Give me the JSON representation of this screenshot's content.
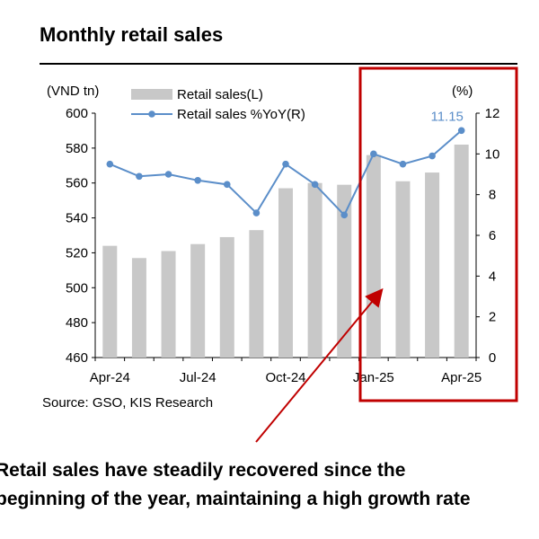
{
  "title": "Monthly retail sales",
  "source": "Source: GSO, KIS Research",
  "annotation": {
    "line1": "Retail sales have steadily recovered since the",
    "line2": "beginning of the year, maintaining a high growth rate"
  },
  "colors": {
    "bar": "#c8c8c8",
    "line": "#5b8ec9",
    "highlight": "#c00000",
    "arrow": "#c00000"
  },
  "chart_data": {
    "type": "bar+line",
    "categories": [
      "Apr-24",
      "May-24",
      "Jun-24",
      "Jul-24",
      "Aug-24",
      "Sep-24",
      "Oct-24",
      "Nov-24",
      "Dec-24",
      "Jan-25",
      "Feb-25",
      "Mar-25",
      "Apr-25"
    ],
    "x_tick_labels": [
      "Apr-24",
      "Jul-24",
      "Oct-24",
      "Jan-25",
      "Apr-25"
    ],
    "series": [
      {
        "name": "Retail sales(L)",
        "type": "bar",
        "axis": "left",
        "values": [
          524,
          517,
          521,
          525,
          529,
          533,
          557,
          560,
          559,
          576,
          561,
          566,
          582
        ]
      },
      {
        "name": "Retail sales %YoY(R)",
        "type": "line",
        "axis": "right",
        "values": [
          9.5,
          8.9,
          9.0,
          8.7,
          8.5,
          7.1,
          9.5,
          8.5,
          7.0,
          10.0,
          9.5,
          9.9,
          11.15
        ]
      }
    ],
    "left_axis": {
      "label": "(VND tn)",
      "ylim": [
        460,
        600
      ],
      "ticks": [
        460,
        480,
        500,
        520,
        540,
        560,
        580,
        600
      ]
    },
    "right_axis": {
      "label": "(%)",
      "ylim": [
        0,
        12
      ],
      "ticks": [
        0,
        2,
        4,
        6,
        8,
        10,
        12
      ]
    },
    "data_labels": [
      {
        "index": 12,
        "text": "11.15"
      }
    ],
    "highlight": {
      "from": "Jan-25",
      "to": "Apr-25"
    },
    "grid": false,
    "legend_position": "top-left"
  }
}
